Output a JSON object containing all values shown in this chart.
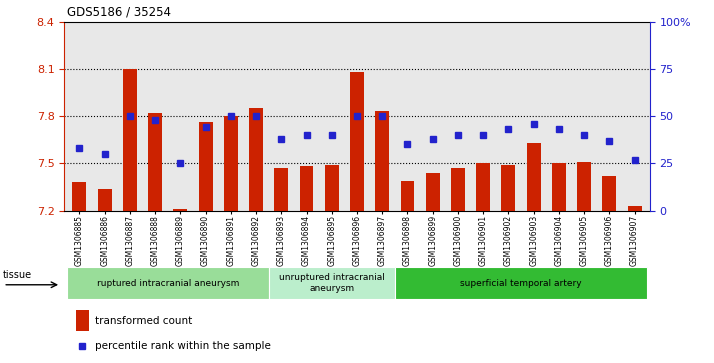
{
  "title": "GDS5186 / 35254",
  "samples": [
    "GSM1306885",
    "GSM1306886",
    "GSM1306887",
    "GSM1306888",
    "GSM1306889",
    "GSM1306890",
    "GSM1306891",
    "GSM1306892",
    "GSM1306893",
    "GSM1306894",
    "GSM1306895",
    "GSM1306896",
    "GSM1306897",
    "GSM1306898",
    "GSM1306899",
    "GSM1306900",
    "GSM1306901",
    "GSM1306902",
    "GSM1306903",
    "GSM1306904",
    "GSM1306905",
    "GSM1306906",
    "GSM1306907"
  ],
  "bar_values": [
    7.38,
    7.34,
    8.1,
    7.82,
    7.21,
    7.76,
    7.8,
    7.85,
    7.47,
    7.48,
    7.49,
    8.08,
    7.83,
    7.39,
    7.44,
    7.47,
    7.5,
    7.49,
    7.63,
    7.5,
    7.51,
    7.42,
    7.23
  ],
  "percentile_values": [
    33,
    30,
    50,
    48,
    25,
    44,
    50,
    50,
    38,
    40,
    40,
    50,
    50,
    35,
    38,
    40,
    40,
    43,
    46,
    43,
    40,
    37,
    27
  ],
  "ymin": 7.2,
  "ymax": 8.4,
  "yticks": [
    7.2,
    7.5,
    7.8,
    8.1,
    8.4
  ],
  "right_yticks": [
    0,
    25,
    50,
    75,
    100
  ],
  "right_ytick_labels": [
    "0",
    "25",
    "50",
    "75",
    "100%"
  ],
  "bar_color": "#cc2200",
  "dot_color": "#2222cc",
  "bar_bottom": 7.2,
  "group_defs": [
    {
      "start": 0,
      "end": 8,
      "label": "ruptured intracranial aneurysm",
      "color": "#99dd99"
    },
    {
      "start": 8,
      "end": 13,
      "label": "unruptured intracranial\naneurysm",
      "color": "#bbeecc"
    },
    {
      "start": 13,
      "end": 23,
      "label": "superficial temporal artery",
      "color": "#33bb33"
    }
  ],
  "tissue_label": "tissue",
  "legend_bar_label": "transformed count",
  "legend_dot_label": "percentile rank within the sample",
  "plot_bg_color": "#e8e8e8"
}
